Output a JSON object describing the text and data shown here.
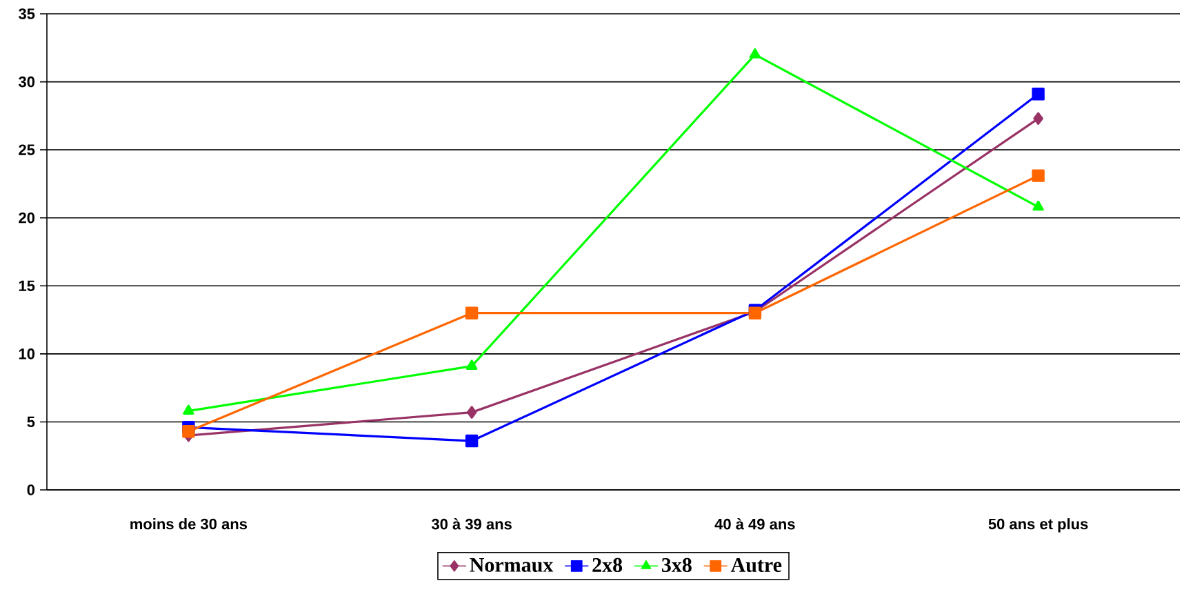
{
  "chart_data": {
    "type": "line",
    "categories": [
      "moins de 30 ans",
      "30 à 39 ans",
      "40 à 49 ans",
      "50 ans et plus"
    ],
    "series": [
      {
        "name": "Normaux",
        "color": "#993366",
        "marker": "diamond",
        "values": [
          4.0,
          5.7,
          13.1,
          27.3
        ]
      },
      {
        "name": "2x8",
        "color": "#0000ff",
        "marker": "square",
        "values": [
          4.6,
          3.6,
          13.2,
          29.1
        ]
      },
      {
        "name": "3x8",
        "color": "#00ff00",
        "marker": "triangle",
        "values": [
          5.8,
          9.1,
          32.0,
          20.8
        ]
      },
      {
        "name": "Autre",
        "color": "#ff6600",
        "marker": "square",
        "values": [
          4.3,
          13.0,
          13.0,
          23.1
        ]
      }
    ],
    "ylim": [
      0,
      35
    ],
    "yticks": [
      0,
      5,
      10,
      15,
      20,
      25,
      30,
      35
    ],
    "grid": "y",
    "legend": "bottom",
    "line_style": "solid"
  }
}
